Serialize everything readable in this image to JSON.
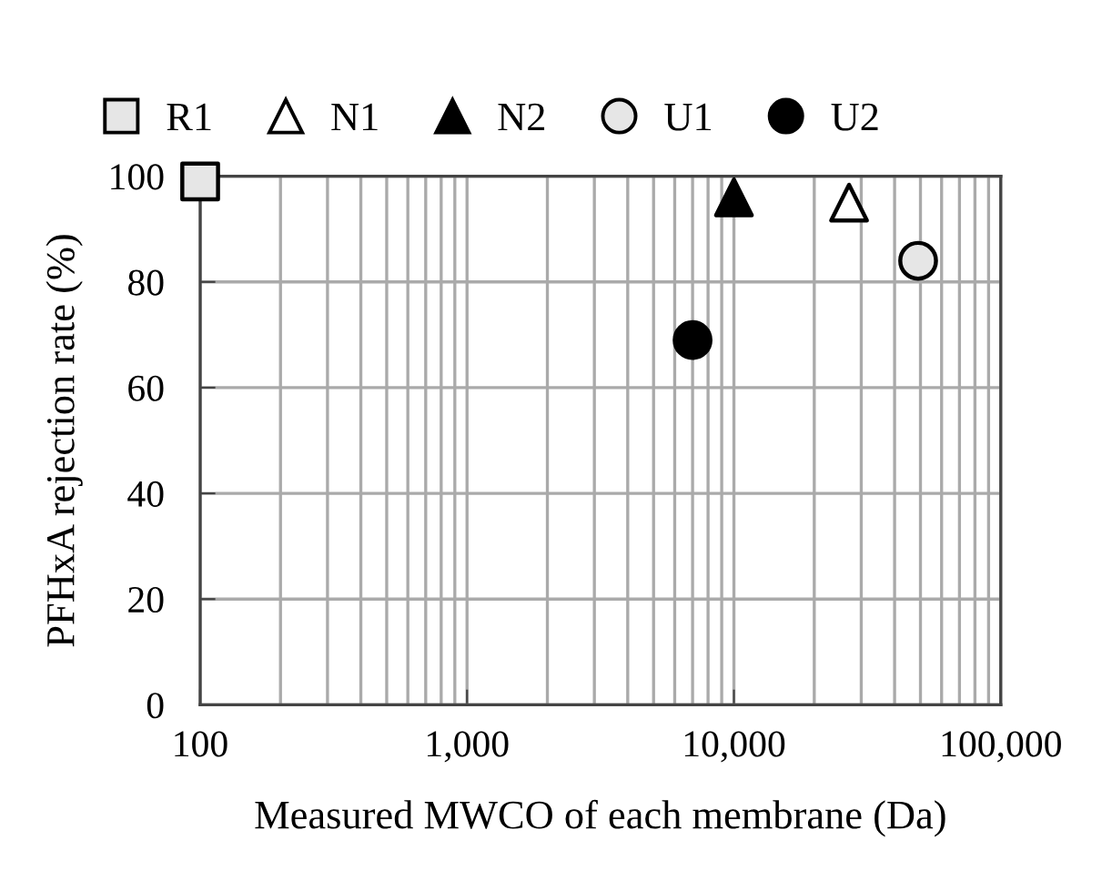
{
  "chart_data": {
    "type": "scatter",
    "xlabel": "Measured MWCO of each membrane (Da)",
    "ylabel": "PFHxA rejection rate (%)",
    "log": "x",
    "grid": true,
    "legend": "top",
    "xlim": [
      100,
      100000
    ],
    "xticks": [
      100,
      {
        "value": 1000,
        "label": "1,000"
      },
      {
        "value": 10000,
        "label": "10,000"
      },
      {
        "value": 100000,
        "label": "100,000"
      }
    ],
    "ylim": [
      0,
      100
    ],
    "yticks": [
      0,
      20,
      40,
      60,
      80,
      100
    ],
    "series": [
      {
        "name": "R1",
        "color": "#e6e6e6",
        "marker": "square",
        "x": [
          100
        ],
        "values": [
          99
        ]
      },
      {
        "name": "N1",
        "color": "#ffffff",
        "marker": "triangle",
        "x": [
          27000
        ],
        "values": [
          95
        ]
      },
      {
        "name": "N2",
        "color": "#000000",
        "marker": "triangle",
        "x": [
          10000
        ],
        "values": [
          96
        ]
      },
      {
        "name": "U1",
        "color": "#e6e6e6",
        "marker": "circle",
        "x": [
          49000
        ],
        "values": [
          84
        ]
      },
      {
        "name": "U2",
        "color": "#000000",
        "marker": "circle",
        "x": [
          7000
        ],
        "values": [
          69
        ]
      }
    ]
  }
}
